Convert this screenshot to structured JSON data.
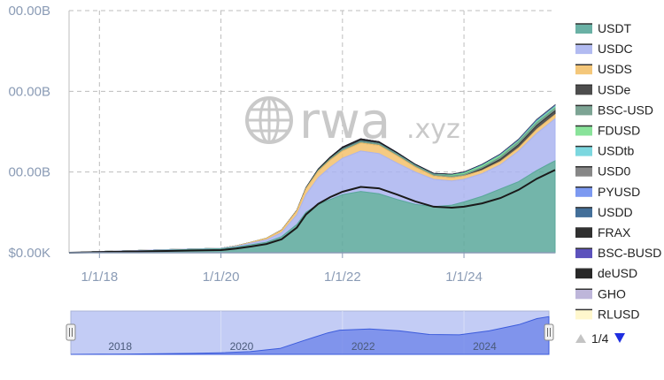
{
  "chart_data": {
    "type": "area",
    "stacked": true,
    "title": "",
    "xlabel": "",
    "ylabel": "",
    "x_ticks": [
      "1/1/18",
      "1/1/20",
      "1/1/22",
      "1/1/24"
    ],
    "y_ticks": [
      "$0.00K",
      "00.00B",
      "00.00B",
      "00.00B"
    ],
    "ylim": [
      0,
      300
    ],
    "grid": true,
    "legend_position": "right",
    "x": [
      2017.5,
      2018.0,
      2018.5,
      2019.0,
      2019.5,
      2020.0,
      2020.25,
      2020.5,
      2020.75,
      2021.0,
      2021.25,
      2021.4,
      2021.6,
      2021.8,
      2022.0,
      2022.3,
      2022.6,
      2022.9,
      2023.2,
      2023.5,
      2023.8,
      2024.0,
      2024.3,
      2024.6,
      2024.9,
      2025.2,
      2025.4,
      2025.5
    ],
    "series": [
      {
        "name": "USDT",
        "color": "#5aa89b",
        "values": [
          0,
          1,
          2,
          3,
          4,
          5,
          7,
          10,
          13,
          20,
          35,
          50,
          60,
          66,
          72,
          76,
          73,
          66,
          60,
          57,
          59,
          63,
          70,
          79,
          88,
          102,
          110,
          114
        ]
      },
      {
        "name": "USDC",
        "color": "#aab4f0",
        "values": [
          0,
          0.5,
          0.5,
          0.5,
          0.5,
          0.5,
          1,
          2,
          3,
          5,
          12,
          22,
          33,
          40,
          45,
          50,
          50,
          45,
          40,
          34,
          30,
          28,
          28,
          30,
          38,
          46,
          50,
          52
        ]
      },
      {
        "name": "USDS",
        "color": "#f3c16c",
        "values": [
          0,
          0,
          0,
          0,
          0,
          0,
          0.5,
          1,
          2,
          3,
          5,
          7,
          8,
          9,
          9,
          10,
          10,
          9,
          6,
          4,
          4,
          4,
          4,
          4,
          4,
          5,
          5,
          5
        ]
      },
      {
        "name": "USDe",
        "color": "#3a3a3a",
        "values": [
          0,
          0,
          0,
          0,
          0,
          0,
          0,
          0,
          0,
          0,
          0,
          0,
          0,
          0,
          0,
          0,
          0,
          0,
          0,
          0,
          0,
          0,
          2,
          3,
          4,
          5,
          5,
          5
        ]
      },
      {
        "name": "BSC-USD",
        "color": "#6f9a88",
        "values": [
          0,
          0,
          0,
          0,
          0,
          0,
          0,
          0,
          0,
          0,
          0,
          0.5,
          1,
          1.5,
          2,
          2,
          2,
          2,
          2,
          2,
          2,
          2,
          2,
          2.5,
          3,
          3,
          3,
          3
        ]
      },
      {
        "name": "FDUSD",
        "color": "#7ce08f",
        "values": [
          0,
          0,
          0,
          0,
          0,
          0,
          0,
          0,
          0,
          0,
          0,
          0,
          0,
          0,
          0,
          0,
          0,
          0,
          0,
          0,
          1,
          1.5,
          2,
          2,
          1,
          1,
          1,
          1
        ]
      },
      {
        "name": "USDtb",
        "color": "#6ed3dc",
        "values": [
          0,
          0,
          0,
          0,
          0,
          0,
          0,
          0,
          0,
          0,
          0,
          0,
          0,
          0,
          0,
          0,
          0,
          0,
          0,
          0,
          0,
          0,
          0,
          0,
          0.5,
          1,
          1,
          1
        ]
      },
      {
        "name": "USD0",
        "color": "#7a7a7a",
        "values": [
          0,
          0,
          0,
          0,
          0,
          0,
          0,
          0,
          0,
          0,
          0,
          0,
          0,
          0,
          0,
          0,
          0,
          0,
          0,
          0,
          0,
          0,
          0,
          0.3,
          0.5,
          0.5,
          0.5,
          0.5
        ]
      },
      {
        "name": "PYUSD",
        "color": "#6e8ef0",
        "values": [
          0,
          0,
          0,
          0,
          0,
          0,
          0,
          0,
          0,
          0,
          0,
          0,
          0,
          0,
          0,
          0,
          0,
          0,
          0,
          0,
          0,
          0.3,
          0.4,
          0.5,
          0.5,
          0.5,
          0.5,
          0.5
        ]
      },
      {
        "name": "USDD",
        "color": "#2f5f8e",
        "values": [
          0,
          0,
          0,
          0,
          0,
          0,
          0,
          0,
          0,
          0,
          0,
          0,
          0,
          0,
          0.5,
          0.5,
          0.5,
          0.5,
          0.5,
          0.5,
          0.5,
          0.5,
          0.5,
          0.5,
          0.5,
          0.5,
          0.5,
          0.5
        ]
      },
      {
        "name": "FRAX",
        "color": "#1a1a1a",
        "values": [
          0,
          0,
          0,
          0,
          0,
          0,
          0,
          0,
          0,
          0.2,
          0.5,
          1,
          1.5,
          2,
          2.5,
          2.5,
          2,
          1.5,
          1,
          0.8,
          0.7,
          0.6,
          0.5,
          0.4,
          0.3,
          0.3,
          0.3,
          0.3
        ]
      },
      {
        "name": "BSC-BUSD",
        "color": "#4a3fb5",
        "values": [
          0,
          0,
          0,
          0,
          0,
          0,
          0,
          0,
          0,
          0,
          0,
          0,
          0,
          0,
          0,
          0,
          0,
          0,
          0,
          0,
          0,
          0,
          0,
          0,
          0,
          0,
          0,
          0
        ]
      },
      {
        "name": "deUSD",
        "color": "#111111",
        "values": [
          0,
          0,
          0,
          0,
          0,
          0,
          0,
          0,
          0,
          0,
          0,
          0,
          0,
          0,
          0,
          0,
          0,
          0,
          0,
          0,
          0,
          0,
          0,
          0,
          0.2,
          0.2,
          0.2,
          0.2
        ]
      },
      {
        "name": "GHO",
        "color": "#b7aed6",
        "values": [
          0,
          0,
          0,
          0,
          0,
          0,
          0,
          0,
          0,
          0,
          0,
          0,
          0,
          0,
          0,
          0,
          0,
          0,
          0,
          0,
          0,
          0.1,
          0.1,
          0.2,
          0.2,
          0.2,
          0.2,
          0.2
        ]
      },
      {
        "name": "RLUSD",
        "color": "#fff6c8",
        "values": [
          0,
          0,
          0,
          0,
          0,
          0,
          0,
          0,
          0,
          0,
          0,
          0,
          0,
          0,
          0,
          0,
          0,
          0,
          0,
          0,
          0,
          0,
          0,
          0,
          0,
          0.1,
          0.2,
          0.2
        ]
      }
    ],
    "navigator": {
      "labels": [
        "2018",
        "2020",
        "2022",
        "2024"
      ],
      "x": [
        2017.5,
        2018.0,
        2018.5,
        2019.0,
        2019.5,
        2020.0,
        2020.5,
        2021.0,
        2021.4,
        2021.8,
        2022.0,
        2022.5,
        2023.0,
        2023.5,
        2024.0,
        2024.5,
        2025.0,
        2025.3,
        2025.5
      ],
      "values": [
        0,
        1,
        2,
        3,
        5,
        8,
        14,
        30,
        70,
        108,
        122,
        128,
        118,
        100,
        98,
        118,
        150,
        180,
        190
      ]
    }
  },
  "watermark": {
    "brand": "rwa",
    "suffix": ".xyz"
  },
  "pager": {
    "text": "1/4"
  }
}
